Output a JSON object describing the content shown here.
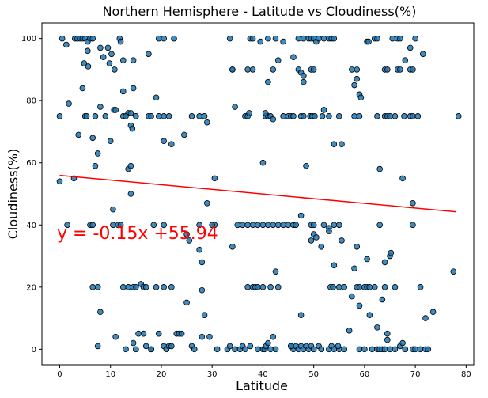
{
  "chart_data": {
    "type": "scatter",
    "title": "Northern Hemisphere - Latitude vs Cloudiness(%)",
    "xlabel": "Latitude",
    "ylabel": "Cloudiness(%)",
    "xlim": [
      -3.5,
      81.5
    ],
    "ylim": [
      -5,
      105
    ],
    "xticks": [
      "0",
      "10",
      "20",
      "30",
      "40",
      "50",
      "60",
      "70",
      "80"
    ],
    "yticks": [
      "0",
      "20",
      "40",
      "60",
      "80",
      "100"
    ],
    "grid": false,
    "marker_color": "#1f77b4",
    "line_color": "#ff0000",
    "regression": {
      "slope": -0.15,
      "intercept": 55.94,
      "x_range": [
        0,
        78
      ],
      "equation_label": "y = -0.15x +55.94"
    },
    "points": [
      [
        0.5,
        100
      ],
      [
        1.3,
        98
      ],
      [
        3,
        100
      ],
      [
        3.5,
        100
      ],
      [
        4,
        100
      ],
      [
        4.5,
        100
      ],
      [
        5,
        100
      ],
      [
        5.5,
        99
      ],
      [
        6,
        100
      ],
      [
        6.5,
        100
      ],
      [
        5.5,
        96
      ],
      [
        4.8,
        92
      ],
      [
        5.6,
        91
      ],
      [
        8,
        97
      ],
      [
        8.6,
        94
      ],
      [
        9.5,
        97
      ],
      [
        9.8,
        92
      ],
      [
        10.2,
        95
      ],
      [
        11.8,
        100
      ],
      [
        12,
        99
      ],
      [
        12.5,
        93
      ],
      [
        14.5,
        93
      ],
      [
        17.5,
        95
      ],
      [
        19.5,
        100
      ],
      [
        20.5,
        100
      ],
      [
        22.5,
        100
      ],
      [
        10.8,
        90
      ],
      [
        4.5,
        84
      ],
      [
        12.5,
        83
      ],
      [
        14.5,
        84
      ],
      [
        19,
        81
      ],
      [
        1.8,
        79
      ],
      [
        8,
        78
      ],
      [
        10.7,
        77
      ],
      [
        11,
        77
      ],
      [
        13.5,
        76
      ],
      [
        14,
        76
      ],
      [
        0,
        75
      ],
      [
        5,
        75
      ],
      [
        5.3,
        75
      ],
      [
        7,
        75
      ],
      [
        9,
        75
      ],
      [
        12.5,
        75
      ],
      [
        13,
        75
      ],
      [
        15,
        75
      ],
      [
        17.5,
        75
      ],
      [
        18,
        75
      ],
      [
        19.5,
        75
      ],
      [
        20.5,
        75
      ],
      [
        21.5,
        75
      ],
      [
        26,
        75
      ],
      [
        27.5,
        75
      ],
      [
        28.5,
        75
      ],
      [
        14,
        72
      ],
      [
        14.3,
        71
      ],
      [
        3.7,
        69
      ],
      [
        24.5,
        69
      ],
      [
        6.5,
        68
      ],
      [
        10,
        67
      ],
      [
        20.5,
        67
      ],
      [
        22,
        66
      ],
      [
        29,
        73
      ],
      [
        7.5,
        63
      ],
      [
        7,
        59
      ],
      [
        13.5,
        58
      ],
      [
        14,
        59
      ],
      [
        30.5,
        55
      ],
      [
        0,
        54
      ],
      [
        2.8,
        55
      ],
      [
        14,
        50
      ],
      [
        29,
        47
      ],
      [
        10.5,
        45
      ],
      [
        1.5,
        40
      ],
      [
        6,
        40
      ],
      [
        6.5,
        40
      ],
      [
        10.5,
        40
      ],
      [
        11.5,
        40
      ],
      [
        12,
        40
      ],
      [
        18.5,
        40
      ],
      [
        20.5,
        40
      ],
      [
        27.5,
        40
      ],
      [
        30.5,
        40
      ],
      [
        30,
        40
      ],
      [
        25,
        37
      ],
      [
        25.5,
        35
      ],
      [
        27.5,
        32
      ],
      [
        28,
        28
      ],
      [
        6.5,
        20
      ],
      [
        7.5,
        20
      ],
      [
        12.5,
        20
      ],
      [
        13.5,
        20
      ],
      [
        14.5,
        20
      ],
      [
        15,
        20
      ],
      [
        16,
        21
      ],
      [
        16.5,
        20
      ],
      [
        17,
        20
      ],
      [
        19,
        20
      ],
      [
        20.5,
        20
      ],
      [
        22,
        20
      ],
      [
        28,
        19
      ],
      [
        25,
        15
      ],
      [
        8,
        12
      ],
      [
        28.5,
        11
      ],
      [
        11,
        4
      ],
      [
        14.5,
        2
      ],
      [
        15,
        0
      ],
      [
        15.5,
        5
      ],
      [
        16.5,
        5
      ],
      [
        17,
        1
      ],
      [
        18,
        0
      ],
      [
        19.5,
        5
      ],
      [
        20.5,
        1
      ],
      [
        21,
        0
      ],
      [
        21.5,
        1
      ],
      [
        22,
        1
      ],
      [
        23,
        5
      ],
      [
        23.5,
        5
      ],
      [
        24,
        5
      ],
      [
        26,
        1
      ],
      [
        26.5,
        0
      ],
      [
        28,
        4
      ],
      [
        29.5,
        4
      ],
      [
        31,
        0
      ],
      [
        7.5,
        1
      ],
      [
        13,
        0
      ],
      [
        18,
        0
      ],
      [
        33.5,
        100
      ],
      [
        37.5,
        100
      ],
      [
        38,
        100
      ],
      [
        39.5,
        99
      ],
      [
        41,
        100
      ],
      [
        42.5,
        100
      ],
      [
        44,
        99
      ],
      [
        47,
        100
      ],
      [
        48,
        100
      ],
      [
        49,
        100
      ],
      [
        49.5,
        100
      ],
      [
        50,
        100
      ],
      [
        50.5,
        99
      ],
      [
        51,
        100
      ],
      [
        52,
        100
      ],
      [
        53,
        100
      ],
      [
        53.5,
        100
      ],
      [
        54,
        100
      ],
      [
        60.5,
        99
      ],
      [
        60.8,
        99
      ],
      [
        62,
        100
      ],
      [
        62.5,
        100
      ],
      [
        65.5,
        100
      ],
      [
        66.5,
        100
      ],
      [
        67,
        100
      ],
      [
        70,
        100
      ],
      [
        71.5,
        95
      ],
      [
        34,
        90
      ],
      [
        34,
        90
      ],
      [
        37,
        90
      ],
      [
        38,
        90
      ],
      [
        42,
        90
      ],
      [
        43,
        93
      ],
      [
        46,
        94
      ],
      [
        47,
        90
      ],
      [
        47.5,
        89
      ],
      [
        48,
        88
      ],
      [
        49.5,
        90
      ],
      [
        50,
        90
      ],
      [
        57.5,
        90
      ],
      [
        58.5,
        90
      ],
      [
        64,
        90
      ],
      [
        64.5,
        90
      ],
      [
        66.5,
        90
      ],
      [
        67,
        90
      ],
      [
        69,
        90
      ],
      [
        69.5,
        90
      ],
      [
        68,
        93
      ],
      [
        69,
        97
      ],
      [
        41,
        86
      ],
      [
        48,
        86
      ],
      [
        58.5,
        87
      ],
      [
        58,
        85
      ],
      [
        59,
        82
      ],
      [
        59.3,
        81
      ],
      [
        34.5,
        78
      ],
      [
        36.5,
        75
      ],
      [
        37,
        75
      ],
      [
        37.3,
        76
      ],
      [
        40.5,
        75
      ],
      [
        41,
        75
      ],
      [
        41.5,
        75
      ],
      [
        42,
        74
      ],
      [
        44,
        75
      ],
      [
        45,
        75
      ],
      [
        45.5,
        75
      ],
      [
        46,
        75
      ],
      [
        47.5,
        75
      ],
      [
        48,
        75
      ],
      [
        49.3,
        75
      ],
      [
        49.7,
        75
      ],
      [
        50.2,
        75
      ],
      [
        51.7,
        75
      ],
      [
        53,
        75
      ],
      [
        55,
        75
      ],
      [
        58,
        75
      ],
      [
        59,
        75
      ],
      [
        62.5,
        75
      ],
      [
        64,
        75
      ],
      [
        64.5,
        75
      ],
      [
        65,
        75
      ],
      [
        66,
        75
      ],
      [
        67.8,
        75
      ],
      [
        69,
        75
      ],
      [
        69.5,
        75
      ],
      [
        70.5,
        75
      ],
      [
        78.5,
        75
      ],
      [
        52,
        77
      ],
      [
        40.5,
        76
      ],
      [
        54,
        66
      ],
      [
        55.5,
        66
      ],
      [
        48.5,
        59
      ],
      [
        40,
        60
      ],
      [
        63,
        58
      ],
      [
        67.5,
        55
      ],
      [
        69.5,
        47
      ],
      [
        35,
        40
      ],
      [
        36,
        40
      ],
      [
        37,
        40
      ],
      [
        38,
        40
      ],
      [
        39,
        40
      ],
      [
        40,
        40
      ],
      [
        41,
        40
      ],
      [
        42,
        40
      ],
      [
        43,
        40
      ],
      [
        44,
        40
      ],
      [
        45,
        40
      ],
      [
        46,
        40
      ],
      [
        46.5,
        40
      ],
      [
        49.5,
        40
      ],
      [
        50,
        40
      ],
      [
        52,
        40
      ],
      [
        53,
        39
      ],
      [
        54,
        40
      ],
      [
        55,
        40
      ],
      [
        63,
        40
      ],
      [
        69.5,
        40
      ],
      [
        47.5,
        43
      ],
      [
        49.5,
        35
      ],
      [
        50,
        37
      ],
      [
        50.5,
        36
      ],
      [
        51.5,
        33
      ],
      [
        53,
        38
      ],
      [
        54,
        27
      ],
      [
        55.5,
        35
      ],
      [
        58.5,
        33
      ],
      [
        60.5,
        29
      ],
      [
        64,
        28
      ],
      [
        65,
        30
      ],
      [
        65.2,
        31
      ],
      [
        34,
        33
      ],
      [
        42.5,
        25
      ],
      [
        37,
        20
      ],
      [
        38,
        20
      ],
      [
        38.5,
        20
      ],
      [
        39,
        20
      ],
      [
        40,
        20
      ],
      [
        41.5,
        20
      ],
      [
        43,
        20
      ],
      [
        53.3,
        20
      ],
      [
        53.8,
        20
      ],
      [
        55,
        20
      ],
      [
        56,
        20
      ],
      [
        58.5,
        20
      ],
      [
        59,
        20
      ],
      [
        60,
        20
      ],
      [
        60.5,
        20
      ],
      [
        61,
        20
      ],
      [
        62,
        20
      ],
      [
        64,
        20
      ],
      [
        66,
        20
      ],
      [
        71,
        20
      ],
      [
        58,
        26
      ],
      [
        57.5,
        17
      ],
      [
        59,
        14
      ],
      [
        63.5,
        16
      ],
      [
        61,
        11
      ],
      [
        64.5,
        5
      ],
      [
        62.5,
        7
      ],
      [
        47.5,
        11
      ],
      [
        73.5,
        12
      ],
      [
        72,
        10
      ],
      [
        77.5,
        25
      ],
      [
        33,
        0
      ],
      [
        33.5,
        1
      ],
      [
        34.5,
        0
      ],
      [
        35.5,
        0
      ],
      [
        36,
        1
      ],
      [
        36.5,
        0
      ],
      [
        37.5,
        1
      ],
      [
        39,
        0
      ],
      [
        40,
        0
      ],
      [
        40.3,
        0
      ],
      [
        40.6,
        1
      ],
      [
        41,
        2
      ],
      [
        41.5,
        0
      ],
      [
        42,
        4
      ],
      [
        42.5,
        0
      ],
      [
        45.5,
        1
      ],
      [
        46,
        0
      ],
      [
        46.5,
        1
      ],
      [
        47,
        0
      ],
      [
        47.5,
        1
      ],
      [
        48,
        0
      ],
      [
        48.5,
        1
      ],
      [
        49,
        0
      ],
      [
        49.5,
        1
      ],
      [
        50,
        0
      ],
      [
        51,
        1
      ],
      [
        51.5,
        0
      ],
      [
        53,
        0
      ],
      [
        53.5,
        1
      ],
      [
        54,
        0
      ],
      [
        55,
        0
      ],
      [
        57,
        6
      ],
      [
        56,
        0
      ],
      [
        59,
        0
      ],
      [
        60,
        0
      ],
      [
        61.5,
        0
      ],
      [
        62.5,
        0
      ],
      [
        63,
        0
      ],
      [
        63.5,
        0
      ],
      [
        64,
        0
      ],
      [
        64.5,
        3
      ],
      [
        65,
        0
      ],
      [
        66,
        0
      ],
      [
        67,
        1
      ],
      [
        67.5,
        2
      ],
      [
        68,
        0
      ],
      [
        69.5,
        0
      ],
      [
        70,
        0
      ],
      [
        71,
        0
      ],
      [
        72,
        0
      ],
      [
        72.5,
        0
      ],
      [
        45.5,
        1
      ],
      [
        54.8,
        1
      ]
    ]
  }
}
